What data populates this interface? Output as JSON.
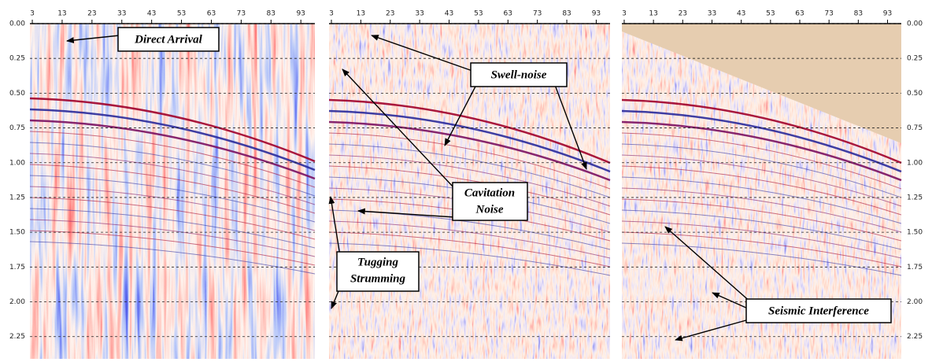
{
  "axes": {
    "xticks": [
      3,
      13,
      23,
      33,
      43,
      53,
      63,
      73,
      83,
      93
    ],
    "xlim": [
      2.2,
      97.7
    ],
    "yticks": [
      {
        "value": 0,
        "label": "0.00"
      },
      {
        "value": 0.25,
        "label": "0.25"
      },
      {
        "value": 0.5,
        "label": "0.50"
      },
      {
        "value": 0.75,
        "label": "0.75"
      },
      {
        "value": 1,
        "label": "1.00"
      },
      {
        "value": 1.25,
        "label": "1.25"
      },
      {
        "value": 1.5,
        "label": "1.50"
      },
      {
        "value": 1.75,
        "label": "1.75"
      },
      {
        "value": 2,
        "label": "2.00"
      },
      {
        "value": 2.25,
        "label": "2.25"
      }
    ],
    "ylim": [
      0,
      2.41
    ]
  },
  "annotations": [
    {
      "text": "Direct Arrival"
    },
    {
      "text": "Swell-noise"
    },
    {
      "lines": [
        "Cavitation",
        "Noise"
      ]
    },
    {
      "lines": [
        "Tugging",
        "Strumming"
      ]
    },
    {
      "text": "Seismic Interference"
    }
  ]
}
